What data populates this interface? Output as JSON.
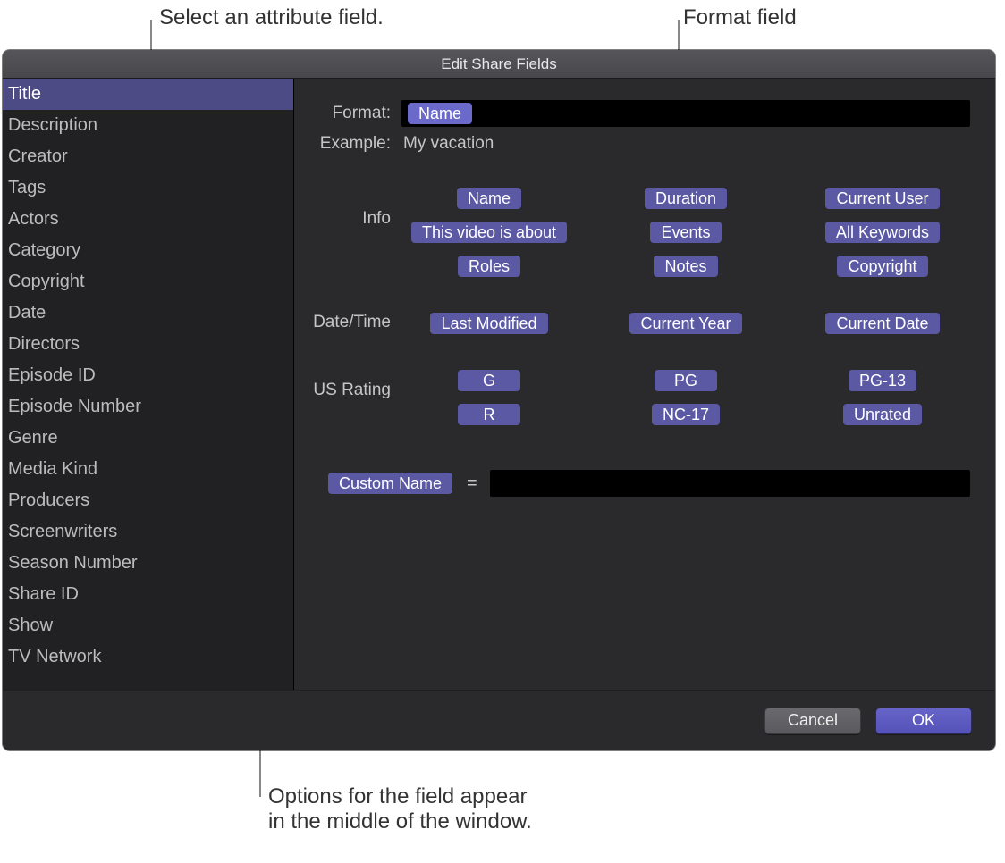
{
  "callouts": {
    "attribute": "Select an attribute field.",
    "format_field": "Format field",
    "options": "Options for the field appear\nin the middle of the window."
  },
  "window": {
    "title": "Edit Share Fields"
  },
  "sidebar": {
    "items": [
      {
        "label": "Title",
        "selected": true
      },
      {
        "label": "Description",
        "selected": false
      },
      {
        "label": "Creator",
        "selected": false
      },
      {
        "label": "Tags",
        "selected": false
      },
      {
        "label": "Actors",
        "selected": false
      },
      {
        "label": "Category",
        "selected": false
      },
      {
        "label": "Copyright",
        "selected": false
      },
      {
        "label": "Date",
        "selected": false
      },
      {
        "label": "Directors",
        "selected": false
      },
      {
        "label": "Episode ID",
        "selected": false
      },
      {
        "label": "Episode Number",
        "selected": false
      },
      {
        "label": "Genre",
        "selected": false
      },
      {
        "label": "Media Kind",
        "selected": false
      },
      {
        "label": "Producers",
        "selected": false
      },
      {
        "label": "Screenwriters",
        "selected": false
      },
      {
        "label": "Season Number",
        "selected": false
      },
      {
        "label": "Share ID",
        "selected": false
      },
      {
        "label": "Show",
        "selected": false
      },
      {
        "label": "TV Network",
        "selected": false
      }
    ]
  },
  "colors": {
    "token_bg": "#5b59a4",
    "token_highlight": "#6b6acb",
    "btn_ok_bg_top": "#6664c8",
    "btn_ok_bg_bottom": "#5452b8"
  },
  "format": {
    "label": "Format:",
    "tokens": [
      {
        "label": "Name"
      }
    ]
  },
  "example": {
    "label": "Example:",
    "value": "My vacation"
  },
  "sections": [
    {
      "label": "Info",
      "tokens": [
        "Name",
        "Duration",
        "Current User",
        "This video is about",
        "Events",
        "All Keywords",
        "Roles",
        "Notes",
        "Copyright"
      ]
    },
    {
      "label": "Date/Time",
      "tokens": [
        "Last Modified",
        "Current Year",
        "Current Date"
      ]
    },
    {
      "label": "US Rating",
      "tokens": [
        "G",
        "PG",
        "PG-13",
        "R",
        "NC-17",
        "Unrated"
      ]
    }
  ],
  "custom": {
    "token": "Custom Name",
    "equals": "=",
    "value": ""
  },
  "footer": {
    "cancel": "Cancel",
    "ok": "OK"
  }
}
